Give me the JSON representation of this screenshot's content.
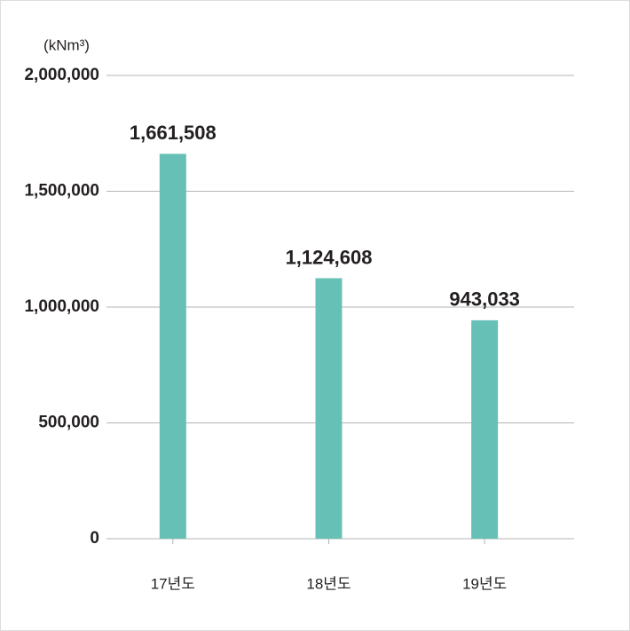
{
  "chart_data": {
    "type": "bar",
    "unit_label": "(kNm³)",
    "categories": [
      "17년도",
      "18년도",
      "19년도"
    ],
    "values": [
      1661508,
      1124608,
      943033
    ],
    "value_labels": [
      "1,661,508",
      "1,124,608",
      "943,033"
    ],
    "color": "#66c0b5",
    "ylim": [
      0,
      2000000
    ],
    "yticks": [
      {
        "value": 0,
        "label": "0"
      },
      {
        "value": 500000,
        "label": "500,000"
      },
      {
        "value": 1000000,
        "label": "1,000,000"
      },
      {
        "value": 1500000,
        "label": "1,500,000"
      },
      {
        "value": 2000000,
        "label": "2,000,000"
      }
    ],
    "grid": true
  }
}
